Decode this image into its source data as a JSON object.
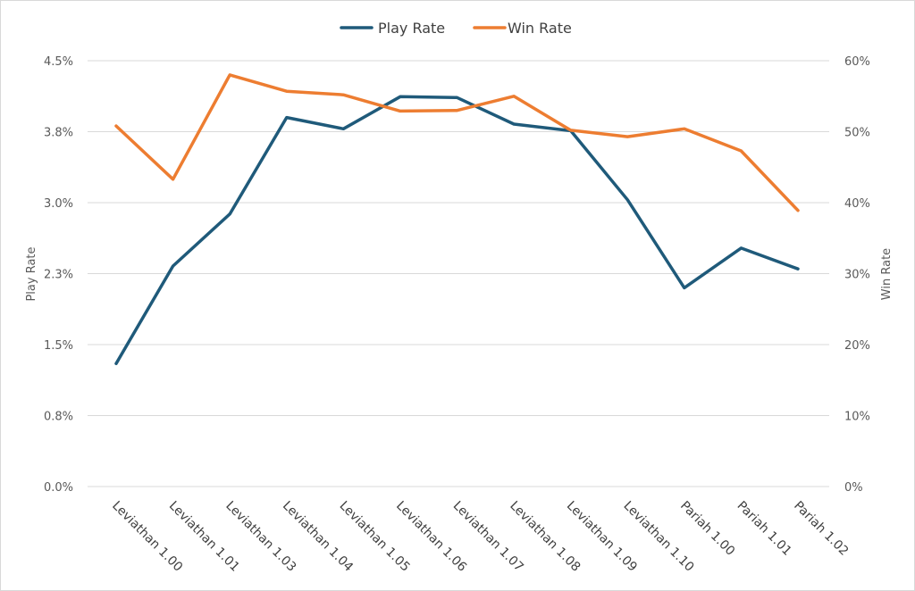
{
  "chart_data": {
    "type": "line",
    "categories": [
      "Leviathan 1.00",
      "Leviathan 1.01",
      "Leviathan 1.03",
      "Leviathan 1.04",
      "Leviathan 1.05",
      "Leviathan 1.06",
      "Leviathan 1.07",
      "Leviathan 1.08",
      "Leviathan 1.09",
      "Leviathan 1.10",
      "Pariah 1.00",
      "Pariah 1.01",
      "Pariah 1.02"
    ],
    "series": [
      {
        "name": "Play Rate",
        "axis": "left",
        "color": "#1f5a7a",
        "values": [
          1.3,
          2.33,
          2.88,
          3.9,
          3.78,
          4.12,
          4.11,
          3.83,
          3.76,
          3.03,
          2.1,
          2.52,
          2.3
        ]
      },
      {
        "name": "Win Rate",
        "axis": "right",
        "color": "#ed7d31",
        "values": [
          50.8,
          43.3,
          58.0,
          55.7,
          55.2,
          52.9,
          53.0,
          55.0,
          50.2,
          49.3,
          50.4,
          47.3,
          38.9
        ]
      }
    ],
    "y_left": {
      "label": "Play Rate",
      "ticks": [
        "0.0%",
        "0.8%",
        "1.5%",
        "2.3%",
        "3.0%",
        "3.8%",
        "4.5%"
      ],
      "min": 0,
      "max": 4.5
    },
    "y_right": {
      "label": "Win Rate",
      "ticks": [
        "0%",
        "10%",
        "20%",
        "30%",
        "40%",
        "50%",
        "60%"
      ],
      "min": 0,
      "max": 60
    },
    "legend": {
      "position": "top",
      "items": [
        "Play Rate",
        "Win Rate"
      ]
    },
    "grid": true
  }
}
